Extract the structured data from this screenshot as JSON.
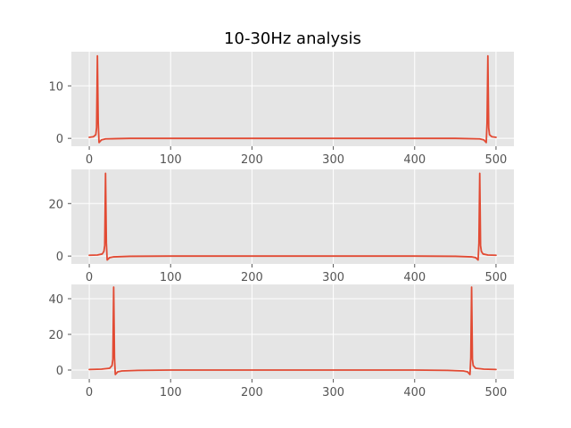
{
  "title": "10-30Hz analysis",
  "colors": {
    "axes_background": "#e5e5e5",
    "grid": "#ffffff",
    "line": "#e24a33",
    "tick_text": "#555555",
    "title_text": "#000000"
  },
  "chart_data": [
    {
      "type": "line",
      "xlim": [
        -22,
        522
      ],
      "ylim": [
        -1.5,
        16.5
      ],
      "xticks": [
        0,
        100,
        200,
        300,
        400,
        500
      ],
      "xtick_labels": [
        "0",
        "100",
        "200",
        "300",
        "400",
        "500"
      ],
      "yticks": [
        0,
        10
      ],
      "ytick_labels": [
        "0",
        "10"
      ],
      "grid": true,
      "series": [
        {
          "x": [
            0,
            5,
            8,
            9,
            10,
            11,
            12,
            15,
            20,
            50,
            100,
            200,
            300,
            400,
            450,
            480,
            485,
            488,
            489,
            490,
            491,
            492,
            495,
            500
          ],
          "y": [
            0.2,
            0.3,
            0.7,
            2.0,
            15.7,
            3.0,
            -0.8,
            -0.3,
            -0.1,
            0,
            0,
            0,
            0,
            0,
            0,
            -0.1,
            -0.3,
            -0.8,
            3.0,
            15.7,
            2.0,
            0.7,
            0.3,
            0.2
          ]
        }
      ]
    },
    {
      "type": "line",
      "xlim": [
        -22,
        522
      ],
      "ylim": [
        -3,
        33
      ],
      "xticks": [
        0,
        100,
        200,
        300,
        400,
        500
      ],
      "xtick_labels": [
        "0",
        "100",
        "200",
        "300",
        "400",
        "500"
      ],
      "yticks": [
        0,
        20
      ],
      "ytick_labels": [
        "0",
        "20"
      ],
      "grid": true,
      "series": [
        {
          "x": [
            0,
            10,
            16,
            18,
            19,
            20,
            21,
            22,
            25,
            30,
            50,
            100,
            200,
            300,
            400,
            450,
            470,
            475,
            478,
            479,
            480,
            481,
            482,
            484,
            490,
            500
          ],
          "y": [
            0.3,
            0.4,
            0.8,
            1.8,
            4.0,
            31.5,
            5.0,
            -1.5,
            -0.6,
            -0.3,
            -0.1,
            0,
            0,
            0,
            0,
            -0.1,
            -0.3,
            -0.6,
            -1.5,
            5.0,
            31.5,
            4.0,
            1.8,
            0.8,
            0.4,
            0.3
          ]
        }
      ]
    },
    {
      "type": "line",
      "xlim": [
        -22,
        522
      ],
      "ylim": [
        -5,
        48
      ],
      "xticks": [
        0,
        100,
        200,
        300,
        400,
        500
      ],
      "xtick_labels": [
        "0",
        "100",
        "200",
        "300",
        "400",
        "500"
      ],
      "yticks": [
        0,
        20,
        40
      ],
      "ytick_labels": [
        "0",
        "20",
        "40"
      ],
      "grid": true,
      "series": [
        {
          "x": [
            0,
            15,
            25,
            28,
            29,
            30,
            31,
            32,
            35,
            40,
            60,
            100,
            200,
            300,
            400,
            440,
            460,
            465,
            468,
            469,
            470,
            471,
            472,
            475,
            485,
            500
          ],
          "y": [
            0.3,
            0.5,
            1.0,
            2.5,
            6.0,
            46.5,
            7.0,
            -2.5,
            -1.0,
            -0.5,
            -0.2,
            0,
            0,
            0,
            0,
            -0.2,
            -0.5,
            -1.0,
            -2.5,
            7.0,
            46.5,
            6.0,
            2.5,
            1.0,
            0.5,
            0.3
          ]
        }
      ]
    }
  ]
}
